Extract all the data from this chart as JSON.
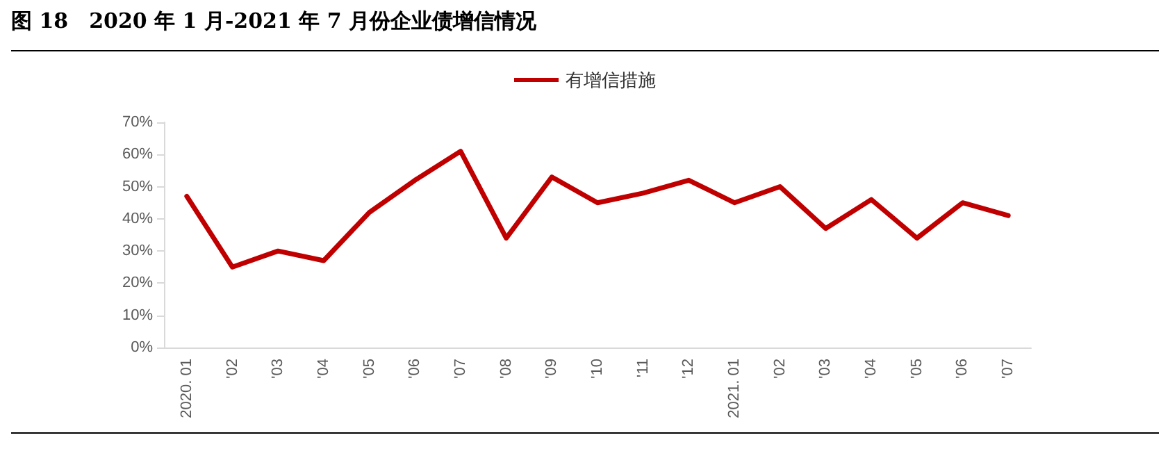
{
  "chart_data": {
    "type": "line",
    "title": "图 18　2020 年 1 月-2021 年 7 月份企业债增信情况",
    "categories": [
      "2020. 01",
      "'02",
      "'03",
      "'04",
      "'05",
      "'06",
      "'07",
      "'08",
      "'09",
      "'10",
      "'11",
      "'12",
      "2021. 01",
      "'02",
      "'03",
      "'04",
      "'05",
      "'06",
      "'07"
    ],
    "series": [
      {
        "name": "有增信措施",
        "color": "#c00000",
        "values": [
          47,
          25,
          30,
          27,
          42,
          52,
          61,
          34,
          53,
          45,
          48,
          52,
          45,
          50,
          37,
          46,
          34,
          45,
          41
        ]
      }
    ],
    "ylim": [
      0,
      70
    ],
    "yticks": [
      {
        "value": 0,
        "label": "0%"
      },
      {
        "value": 10,
        "label": "10%"
      },
      {
        "value": 20,
        "label": "20%"
      },
      {
        "value": 30,
        "label": "30%"
      },
      {
        "value": 40,
        "label": "40%"
      },
      {
        "value": 50,
        "label": "50%"
      },
      {
        "value": 60,
        "label": "60%"
      },
      {
        "value": 70,
        "label": "70%"
      }
    ],
    "grid": false,
    "legend": "top",
    "marker": "none",
    "line_style": "solid"
  }
}
